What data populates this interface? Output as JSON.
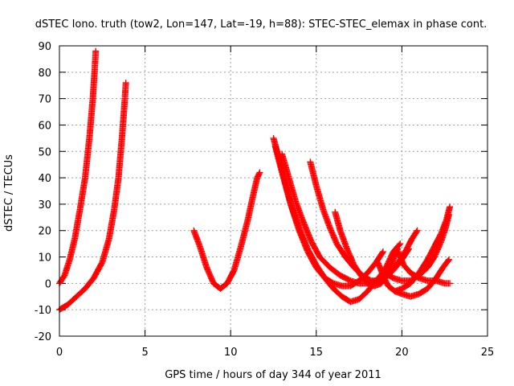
{
  "chart_data": {
    "type": "scatter",
    "title": "dSTEC Iono. truth (tow2, Lon=147, Lat=-19, h=88): STEC-STEC_elemax in phase cont.",
    "xlabel": "GPS time / hours of day 344 of year 2011",
    "ylabel": "dSTEC  / TECUs",
    "xlim": [
      0,
      25
    ],
    "ylim": [
      -20,
      90
    ],
    "xticks": [
      0,
      5,
      10,
      15,
      20,
      25
    ],
    "yticks": [
      -20,
      -10,
      0,
      10,
      20,
      30,
      40,
      50,
      60,
      70,
      80,
      90
    ],
    "xtick_labels": [
      "0",
      "5",
      "10",
      "15",
      "20",
      "25"
    ],
    "ytick_labels": [
      "-20",
      "-10",
      "0",
      "10",
      "20",
      "30",
      "40",
      "50",
      "60",
      "70",
      "80",
      "90"
    ],
    "grid": true,
    "marker": "plus",
    "marker_color": "#ff0000",
    "series": [
      {
        "points": [
          [
            0.0,
            0
          ],
          [
            0.3,
            3
          ],
          [
            0.6,
            9
          ],
          [
            0.9,
            17
          ],
          [
            1.2,
            28
          ],
          [
            1.5,
            40
          ],
          [
            1.75,
            55
          ],
          [
            1.95,
            70
          ],
          [
            2.05,
            80
          ],
          [
            2.12,
            88
          ]
        ]
      },
      {
        "points": [
          [
            0.0,
            -10
          ],
          [
            0.5,
            -8
          ],
          [
            1.0,
            -5
          ],
          [
            1.5,
            -2
          ],
          [
            2.0,
            2
          ],
          [
            2.5,
            8
          ],
          [
            2.9,
            17
          ],
          [
            3.2,
            28
          ],
          [
            3.45,
            40
          ],
          [
            3.65,
            55
          ],
          [
            3.8,
            68
          ],
          [
            3.88,
            76
          ]
        ]
      },
      {
        "points": [
          [
            7.85,
            20
          ],
          [
            8.2,
            14
          ],
          [
            8.6,
            6
          ],
          [
            9.0,
            0
          ],
          [
            9.4,
            -2
          ],
          [
            9.8,
            0
          ],
          [
            10.2,
            5
          ],
          [
            10.6,
            14
          ],
          [
            11.0,
            24
          ],
          [
            11.3,
            33
          ],
          [
            11.55,
            40
          ],
          [
            11.7,
            42
          ]
        ]
      },
      {
        "points": [
          [
            12.5,
            55
          ],
          [
            12.8,
            48
          ],
          [
            13.2,
            38
          ],
          [
            13.6,
            28
          ],
          [
            14.0,
            20
          ],
          [
            14.5,
            12
          ],
          [
            15.0,
            6
          ],
          [
            15.5,
            2
          ],
          [
            16.0,
            0
          ],
          [
            16.5,
            -1
          ],
          [
            17.0,
            -1
          ],
          [
            17.5,
            1
          ],
          [
            18.0,
            4
          ],
          [
            18.5,
            8
          ],
          [
            18.9,
            12
          ]
        ]
      },
      {
        "points": [
          [
            12.6,
            52
          ],
          [
            13.0,
            42
          ],
          [
            13.5,
            30
          ],
          [
            14.0,
            21
          ],
          [
            14.5,
            13
          ],
          [
            15.0,
            7
          ],
          [
            15.5,
            2
          ],
          [
            16.0,
            -2
          ],
          [
            16.5,
            -5
          ],
          [
            17.0,
            -7
          ],
          [
            17.5,
            -6
          ],
          [
            18.0,
            -3
          ],
          [
            18.5,
            1
          ],
          [
            19.0,
            5
          ],
          [
            19.5,
            12
          ],
          [
            19.9,
            15
          ]
        ]
      },
      {
        "points": [
          [
            13.0,
            49
          ],
          [
            13.4,
            40
          ],
          [
            13.8,
            31
          ],
          [
            14.2,
            24
          ],
          [
            14.7,
            16
          ],
          [
            15.2,
            10
          ],
          [
            15.8,
            6
          ],
          [
            16.4,
            3
          ],
          [
            17.0,
            1
          ],
          [
            17.5,
            0
          ],
          [
            18.0,
            0
          ],
          [
            18.5,
            1
          ],
          [
            19.0,
            2
          ],
          [
            19.5,
            5
          ],
          [
            20.0,
            9
          ],
          [
            20.4,
            13
          ]
        ]
      },
      {
        "points": [
          [
            14.65,
            46
          ],
          [
            15.0,
            37
          ],
          [
            15.4,
            28
          ],
          [
            15.8,
            21
          ],
          [
            16.2,
            15
          ],
          [
            16.7,
            10
          ],
          [
            17.2,
            6
          ],
          [
            17.7,
            3
          ],
          [
            18.2,
            1
          ],
          [
            18.7,
            1
          ],
          [
            19.2,
            3
          ],
          [
            19.7,
            7
          ],
          [
            20.2,
            12
          ],
          [
            20.6,
            17
          ],
          [
            20.9,
            20
          ]
        ]
      },
      {
        "points": [
          [
            16.1,
            27
          ],
          [
            16.4,
            20
          ],
          [
            16.8,
            13
          ],
          [
            17.2,
            7
          ],
          [
            17.6,
            3
          ],
          [
            18.0,
            0
          ],
          [
            18.4,
            -1
          ],
          [
            18.8,
            0
          ],
          [
            19.2,
            4
          ],
          [
            19.5,
            9
          ],
          [
            19.75,
            13
          ]
        ]
      },
      {
        "points": [
          [
            19.8,
            12
          ],
          [
            20.1,
            7
          ],
          [
            20.5,
            4
          ],
          [
            21.0,
            2
          ],
          [
            21.5,
            1
          ],
          [
            22.0,
            1
          ],
          [
            22.5,
            0
          ],
          [
            22.8,
            0
          ]
        ]
      },
      {
        "points": [
          [
            19.6,
            -3
          ],
          [
            20.0,
            -4
          ],
          [
            20.5,
            -5
          ],
          [
            21.0,
            -4
          ],
          [
            21.5,
            -2
          ],
          [
            22.0,
            2
          ],
          [
            22.4,
            6
          ],
          [
            22.75,
            9
          ]
        ]
      },
      {
        "points": [
          [
            19.0,
            4
          ],
          [
            19.5,
            2
          ],
          [
            20.0,
            1
          ],
          [
            20.5,
            1
          ],
          [
            21.0,
            3
          ],
          [
            21.5,
            6
          ],
          [
            21.9,
            10
          ],
          [
            22.3,
            16
          ],
          [
            22.55,
            21
          ],
          [
            22.75,
            26
          ]
        ]
      },
      {
        "points": [
          [
            18.6,
            8
          ],
          [
            18.9,
            3
          ],
          [
            19.2,
            -1
          ],
          [
            19.6,
            -3
          ],
          [
            20.0,
            -2
          ],
          [
            20.5,
            0
          ],
          [
            21.0,
            4
          ],
          [
            21.5,
            9
          ],
          [
            21.9,
            14
          ],
          [
            22.3,
            19
          ],
          [
            22.6,
            24
          ],
          [
            22.8,
            29
          ]
        ]
      }
    ]
  }
}
